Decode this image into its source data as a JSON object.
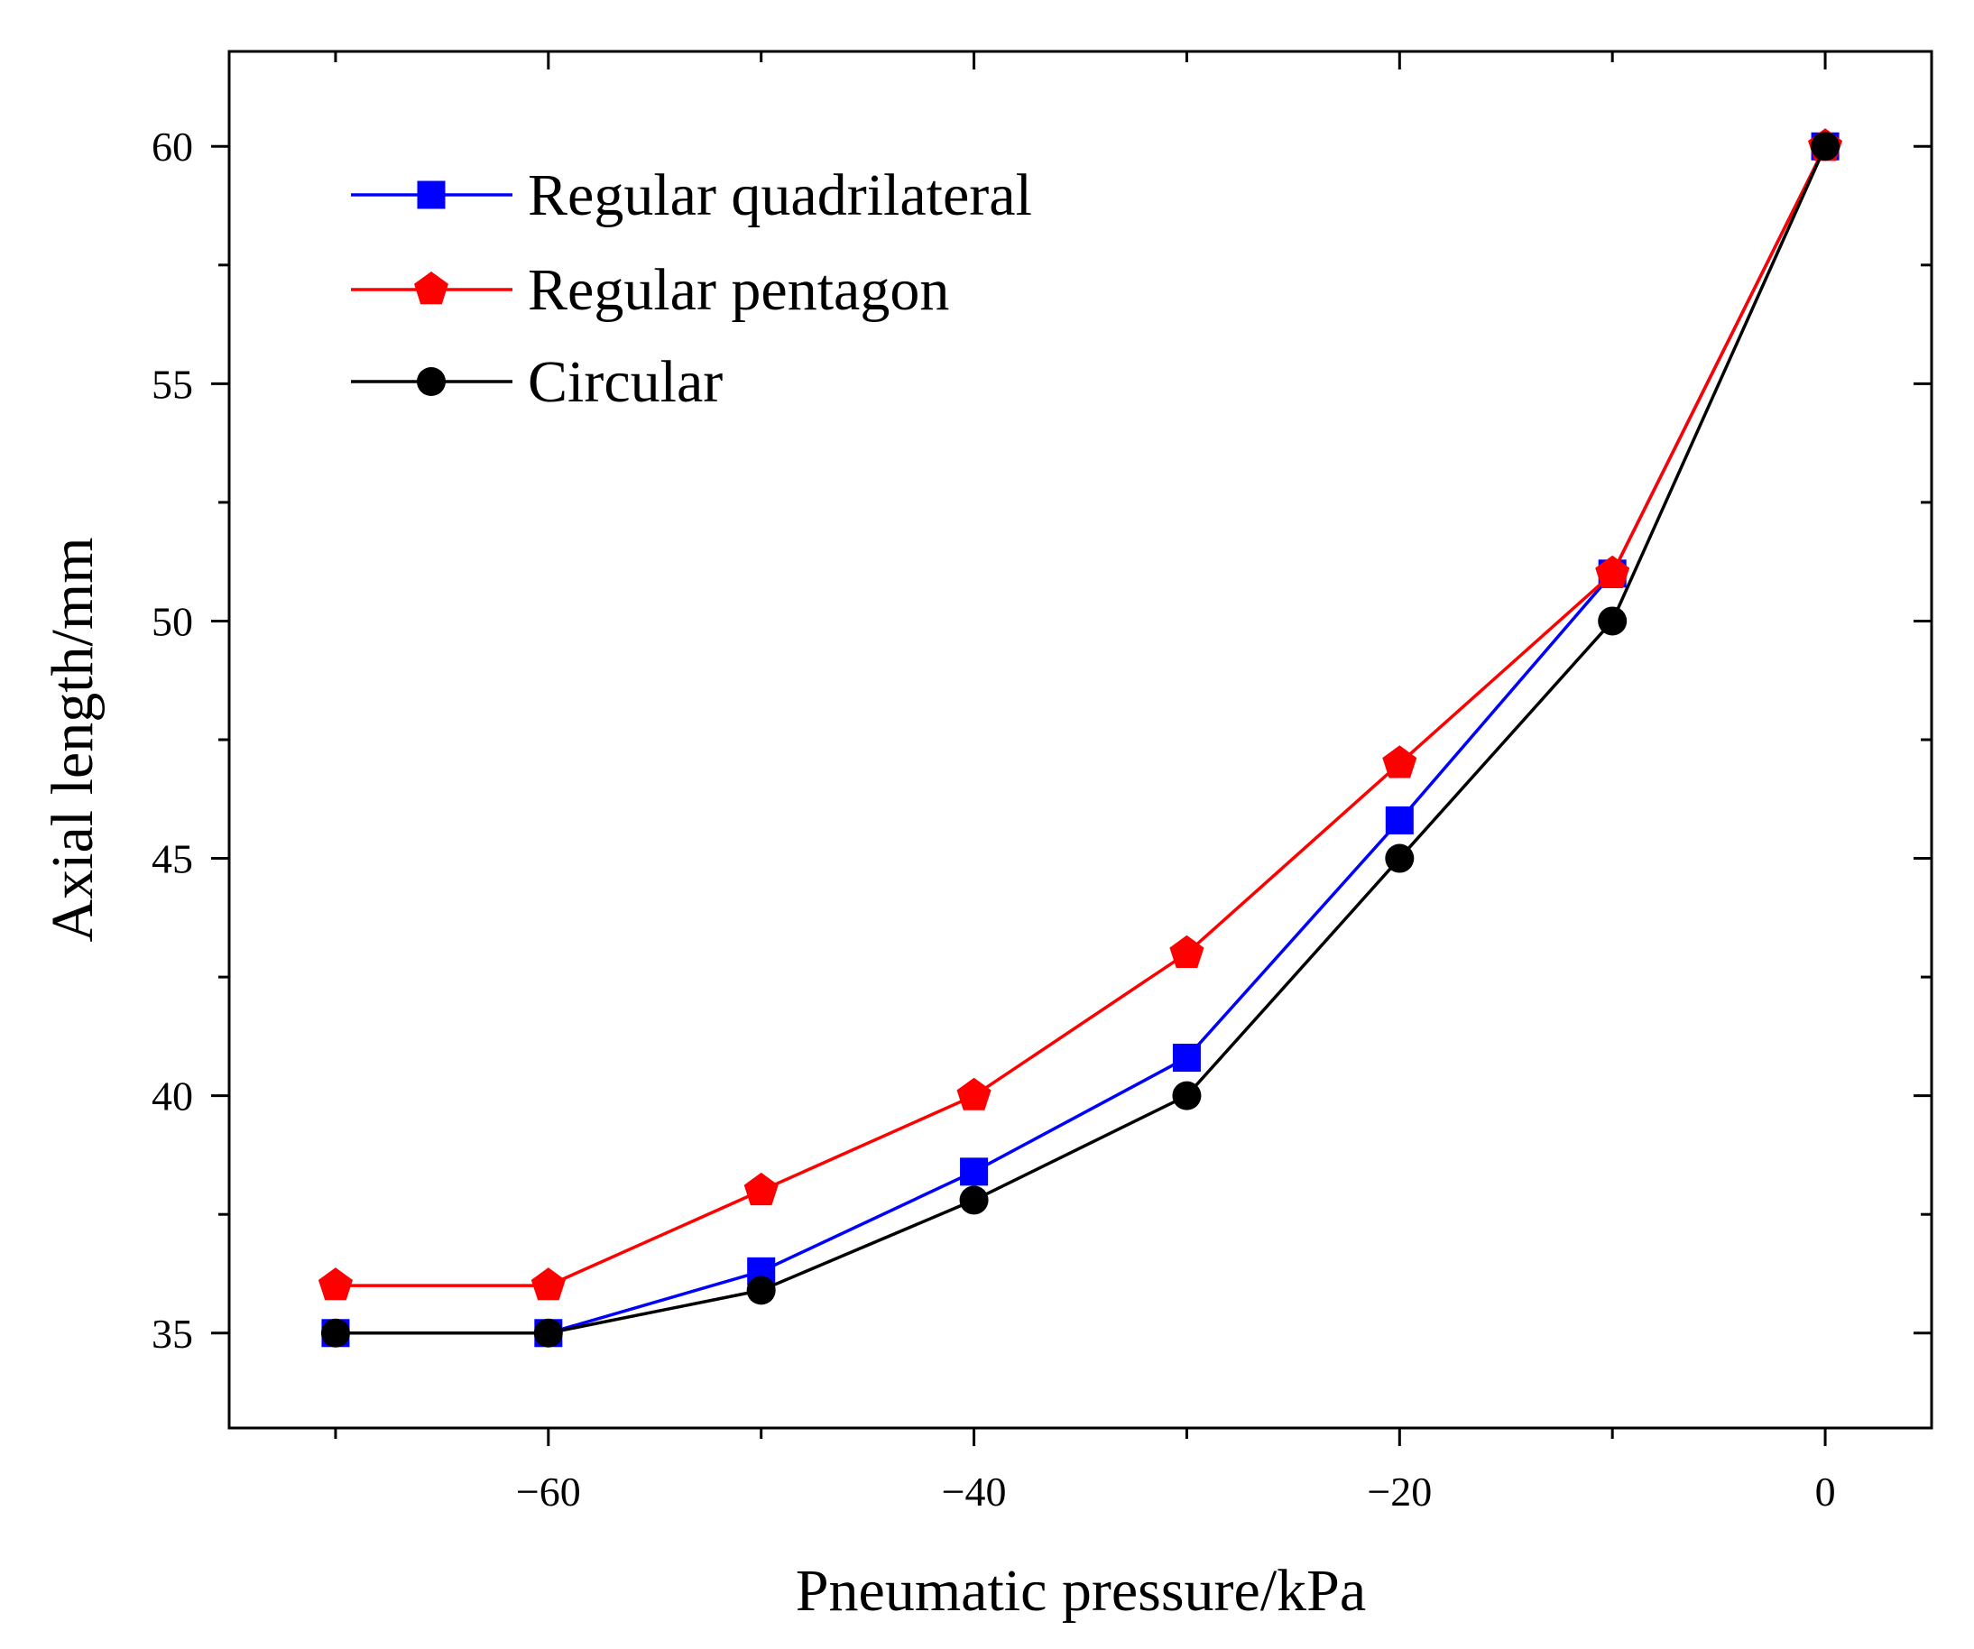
{
  "chart_data": {
    "type": "line",
    "title": "",
    "xlabel": "Pneumatic pressure/kPa",
    "ylabel": "Axial length/mm",
    "xlim": [
      -75,
      5
    ],
    "ylim": [
      33,
      62
    ],
    "xticks": [
      -60,
      -40,
      -20,
      0
    ],
    "xtick_labels": [
      "−60",
      "−40",
      "−20",
      "0"
    ],
    "yticks": [
      35,
      40,
      45,
      50,
      55,
      60
    ],
    "ytick_labels": [
      "35",
      "40",
      "45",
      "50",
      "55",
      "60"
    ],
    "grid": false,
    "legend_position": "top-left",
    "x": [
      -70,
      -60,
      -50,
      -40,
      -30,
      -20,
      -10,
      0
    ],
    "series": [
      {
        "name": "Regular quadrilateral",
        "color": "#0000ff",
        "marker": "square",
        "values": [
          35,
          35,
          36.3,
          38.4,
          40.8,
          45.8,
          51,
          60
        ]
      },
      {
        "name": "Regular pentagon",
        "color": "#ff0000",
        "marker": "pentagon",
        "values": [
          36,
          36,
          38,
          40,
          43,
          47,
          51,
          60
        ]
      },
      {
        "name": "Circular",
        "color": "#000000",
        "marker": "circle",
        "values": [
          35,
          35,
          35.9,
          37.8,
          40,
          45,
          50,
          60
        ]
      }
    ]
  }
}
